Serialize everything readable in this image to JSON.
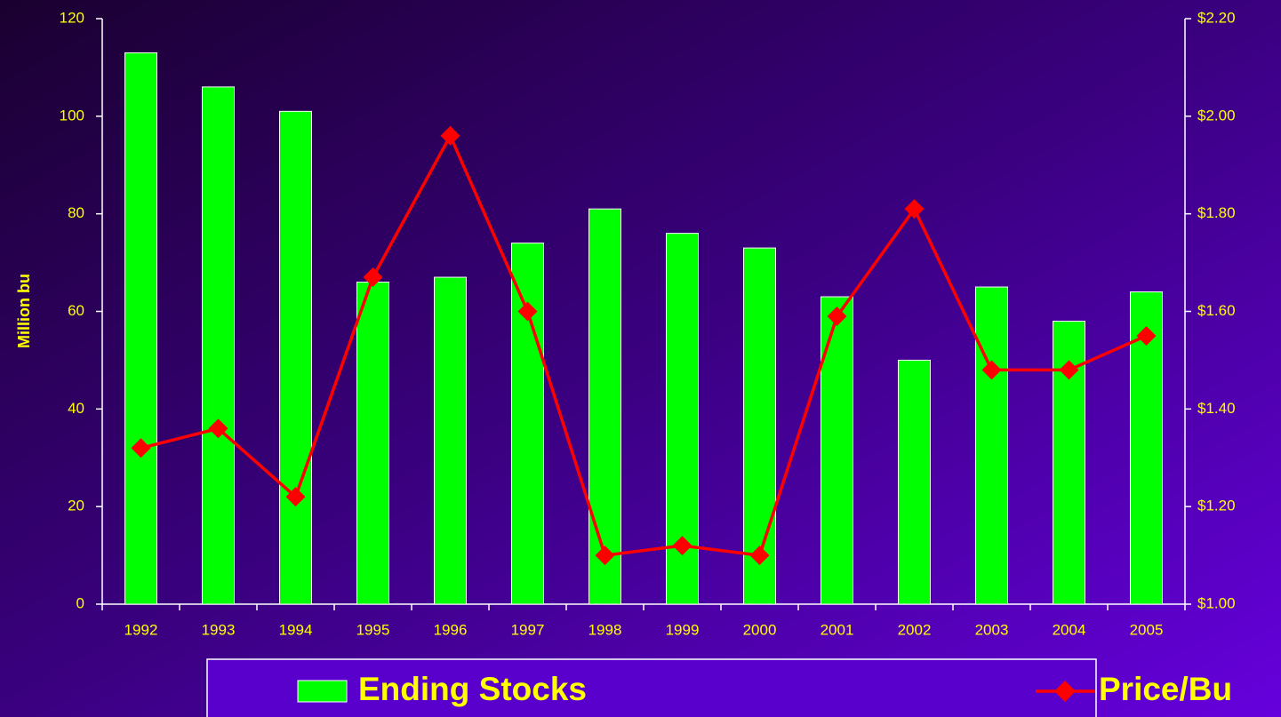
{
  "chart_data": {
    "type": "bar",
    "categories": [
      "1992",
      "1993",
      "1994",
      "1995",
      "1996",
      "1997",
      "1998",
      "1999",
      "2000",
      "2001",
      "2002",
      "2003",
      "2004",
      "2005"
    ],
    "series": [
      {
        "name": "Ending Stocks",
        "type": "bar",
        "color": "#00ff00",
        "values": [
          113,
          106,
          101,
          66,
          67,
          74,
          81,
          76,
          73,
          63,
          50,
          65,
          58,
          64
        ]
      },
      {
        "name": "Price/Bu",
        "type": "line",
        "axis": "y2",
        "color": "#ff0000",
        "values": [
          1.32,
          1.36,
          1.22,
          1.67,
          1.96,
          1.6,
          1.1,
          1.12,
          1.1,
          1.59,
          1.81,
          1.48,
          1.48,
          1.55
        ]
      }
    ],
    "ylabel": "Million bu",
    "ylim": [
      0,
      120
    ],
    "yticks": [
      0,
      20,
      40,
      60,
      80,
      100,
      120
    ],
    "y2lim": [
      1.0,
      2.2
    ],
    "y2ticks": [
      {
        "value": 1.0,
        "label": "$1.00"
      },
      {
        "value": 1.2,
        "label": "$1.20"
      },
      {
        "value": 1.4,
        "label": "$1.40"
      },
      {
        "value": 1.6,
        "label": "$1.60"
      },
      {
        "value": 1.8,
        "label": "$1.80"
      },
      {
        "value": 2.0,
        "label": "$2.00"
      },
      {
        "value": 2.2,
        "label": "$2.20"
      }
    ],
    "legend": "bottom"
  }
}
